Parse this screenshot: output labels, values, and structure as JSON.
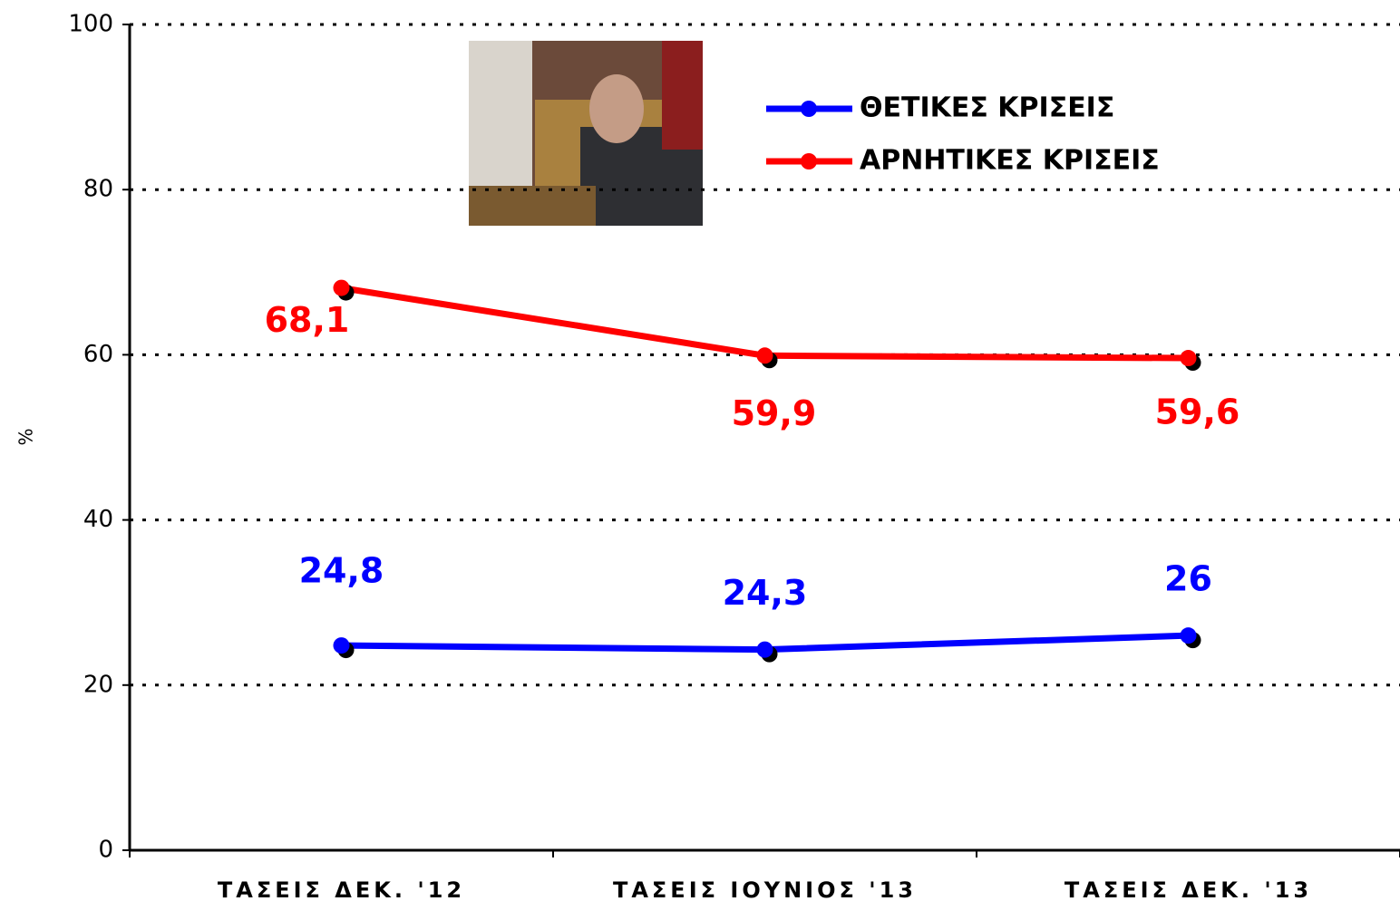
{
  "chart_data": {
    "type": "line",
    "y_label": "%",
    "categories": [
      "ΤΑΣΕΙΣ ΔΕΚ. '12",
      "ΤΑΣΕΙΣ ΙΟΥΝΙΟΣ '13",
      "ΤΑΣΕΙΣ ΔΕΚ. '13"
    ],
    "series": [
      {
        "name": "ΘΕΤΙΚΕΣ ΚΡΙΣΕΙΣ",
        "color": "#0000ff",
        "values": [
          24.8,
          24.3,
          26
        ],
        "value_labels": [
          "24,8",
          "24,3",
          "26"
        ]
      },
      {
        "name": "ΑΡΝΗΤΙΚΕΣ ΚΡΙΣΕΙΣ",
        "color": "#ff0000",
        "values": [
          68.1,
          59.9,
          59.6
        ],
        "value_labels": [
          "68,1",
          "59,9",
          "59,6"
        ]
      }
    ],
    "ylim": [
      0,
      100
    ],
    "yticks": [
      0,
      20,
      40,
      60,
      80,
      100
    ],
    "grid": true
  }
}
